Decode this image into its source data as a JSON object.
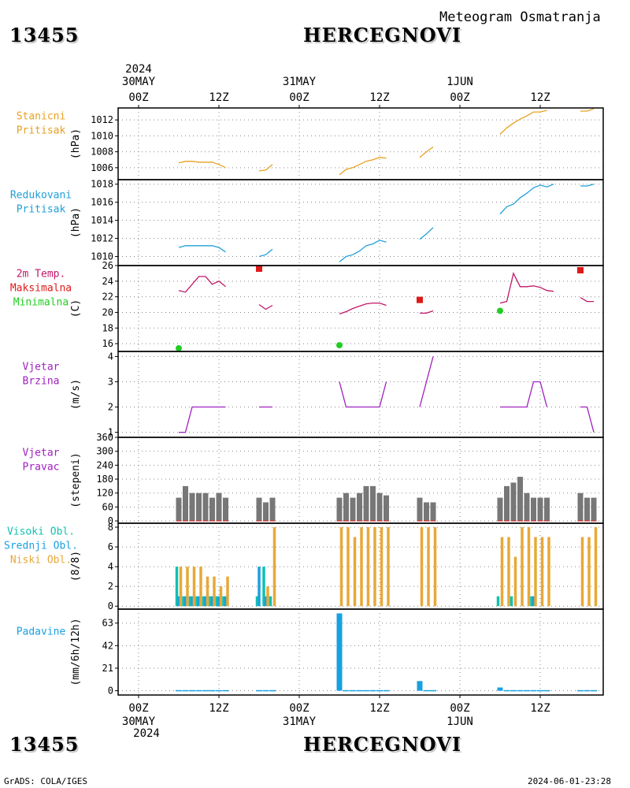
{
  "header": {
    "station_id": "13455",
    "station_name": "HERCEGNOVI",
    "subtitle": "Meteogram Osmatranja"
  },
  "footer": {
    "credit": "GrADS: COLA/IGES",
    "timestamp": "2024-06-01-23:28"
  },
  "time_axis": {
    "year": "2024",
    "day_labels": [
      "30MAY",
      "31MAY",
      "1JUN"
    ],
    "hour_labels": [
      "00Z",
      "12Z",
      "00Z",
      "12Z",
      "00Z",
      "12Z"
    ],
    "tick_hours": [
      0,
      12,
      24,
      36,
      48,
      60
    ]
  },
  "colors": {
    "stanicni": "#e8a020",
    "redukovani": "#1fa0d8",
    "temperature": "#c0186a",
    "maksimalna": "#e01818",
    "minimalna": "#22cc22",
    "wind": "#a020c0",
    "direction_bar": "#777777",
    "visoki": "#10c0b0",
    "srednji": "#1aa0e0",
    "niski": "#e8a838",
    "padavine": "#18a0e0"
  },
  "chart_data": [
    {
      "type": "line",
      "panel": "stanicni",
      "label_lines": [
        "Stanicni",
        "Pritisak"
      ],
      "ylabel": "(hPa)",
      "ylim": [
        1004.5,
        1013.5
      ],
      "yticks": [
        1006,
        1008,
        1010,
        1012
      ],
      "segments": [
        {
          "x": [
            6,
            7,
            8,
            9,
            10,
            11,
            12,
            13
          ],
          "y": [
            1006.6,
            1006.8,
            1006.8,
            1006.7,
            1006.7,
            1006.7,
            1006.4,
            1006.0
          ]
        },
        {
          "x": [
            18,
            19,
            20
          ],
          "y": [
            1005.6,
            1005.7,
            1006.4
          ]
        },
        {
          "x": [
            30,
            31,
            32,
            33,
            34,
            35,
            36,
            37
          ],
          "y": [
            1005.1,
            1005.8,
            1006.0,
            1006.4,
            1006.8,
            1007.0,
            1007.3,
            1007.2
          ]
        },
        {
          "x": [
            42,
            43,
            44
          ],
          "y": [
            1007.3,
            1008.0,
            1008.6
          ]
        },
        {
          "x": [
            54,
            55,
            56,
            57,
            58,
            59,
            60,
            61
          ],
          "y": [
            1010.2,
            1011.0,
            1011.6,
            1012.1,
            1012.5,
            1013.0,
            1013.0,
            1013.2
          ]
        },
        {
          "x": [
            66,
            67,
            68
          ],
          "y": [
            1013.1,
            1013.1,
            1013.4
          ]
        }
      ]
    },
    {
      "type": "line",
      "panel": "redukovani",
      "label_lines": [
        "Redukovani",
        "Pritisak"
      ],
      "ylabel": "(hPa)",
      "ylim": [
        1009,
        1018.5
      ],
      "yticks": [
        1010,
        1012,
        1014,
        1016,
        1018
      ],
      "segments": [
        {
          "x": [
            6,
            7,
            8,
            9,
            10,
            11,
            12,
            13
          ],
          "y": [
            1011.0,
            1011.2,
            1011.2,
            1011.2,
            1011.2,
            1011.2,
            1011.0,
            1010.5
          ]
        },
        {
          "x": [
            18,
            19,
            20
          ],
          "y": [
            1010.0,
            1010.2,
            1010.8
          ]
        },
        {
          "x": [
            30,
            31,
            32,
            33,
            34,
            35,
            36,
            37
          ],
          "y": [
            1009.4,
            1010.0,
            1010.2,
            1010.6,
            1011.2,
            1011.4,
            1011.8,
            1011.6
          ]
        },
        {
          "x": [
            42,
            43,
            44
          ],
          "y": [
            1011.9,
            1012.5,
            1013.2
          ]
        },
        {
          "x": [
            54,
            55,
            56,
            57,
            58,
            59,
            60,
            61,
            62
          ],
          "y": [
            1014.7,
            1015.5,
            1015.8,
            1016.5,
            1017.0,
            1017.6,
            1017.9,
            1017.7,
            1018.0
          ]
        },
        {
          "x": [
            66,
            67,
            68
          ],
          "y": [
            1017.8,
            1017.8,
            1018.0
          ]
        }
      ]
    },
    {
      "type": "line",
      "panel": "temperature",
      "label_lines": [
        "2m Temp.",
        "Maksimalna",
        "Minimalna"
      ],
      "ylabel": "(C)",
      "ylim": [
        15,
        26
      ],
      "yticks": [
        16,
        18,
        20,
        22,
        24,
        26
      ],
      "segments": [
        {
          "x": [
            6,
            7,
            8,
            9,
            10,
            11,
            12,
            13
          ],
          "y": [
            22.8,
            22.6,
            23.6,
            24.6,
            24.6,
            23.6,
            24.0,
            23.3
          ]
        },
        {
          "x": [
            18,
            19,
            20
          ],
          "y": [
            21.0,
            20.4,
            20.9
          ]
        },
        {
          "x": [
            30,
            31,
            32,
            33,
            34,
            35,
            36,
            37
          ],
          "y": [
            19.8,
            20.1,
            20.5,
            20.8,
            21.1,
            21.2,
            21.2,
            20.9
          ]
        },
        {
          "x": [
            42,
            43,
            44
          ],
          "y": [
            19.9,
            19.9,
            20.2
          ]
        },
        {
          "x": [
            54,
            55,
            56,
            57,
            58,
            59,
            60,
            61,
            62
          ],
          "y": [
            21.2,
            21.4,
            25.0,
            23.3,
            23.3,
            23.4,
            23.2,
            22.8,
            22.7
          ]
        },
        {
          "x": [
            66,
            67,
            68
          ],
          "y": [
            21.9,
            21.4,
            21.4
          ]
        }
      ],
      "maksimalna": [
        {
          "x": 18,
          "y": 25.6
        },
        {
          "x": 42,
          "y": 21.6
        },
        {
          "x": 66,
          "y": 25.4
        }
      ],
      "minimalna": [
        {
          "x": 6,
          "y": 15.4
        },
        {
          "x": 30,
          "y": 15.8
        },
        {
          "x": 54,
          "y": 20.2
        }
      ]
    },
    {
      "type": "line",
      "panel": "wind_speed",
      "label_lines": [
        "Vjetar",
        "Brzina"
      ],
      "ylabel": "(m/s)",
      "ylim": [
        0.8,
        4.2
      ],
      "yticks": [
        1,
        2,
        3,
        4
      ],
      "segments": [
        {
          "x": [
            6,
            7,
            8,
            9,
            10,
            11,
            12,
            13
          ],
          "y": [
            1,
            1,
            2,
            2,
            2,
            2,
            2,
            2
          ]
        },
        {
          "x": [
            18,
            19,
            20
          ],
          "y": [
            2,
            2,
            2
          ]
        },
        {
          "x": [
            30,
            31,
            32,
            33,
            34,
            35,
            36,
            37
          ],
          "y": [
            3,
            2,
            2,
            2,
            2,
            2,
            2,
            3
          ]
        },
        {
          "x": [
            42,
            43,
            44
          ],
          "y": [
            2,
            3,
            4
          ]
        },
        {
          "x": [
            54,
            55,
            56,
            57,
            58,
            59,
            60,
            61
          ],
          "y": [
            2,
            2,
            2,
            2,
            2,
            3,
            3,
            2
          ]
        },
        {
          "x": [
            66,
            67,
            68
          ],
          "y": [
            2,
            2,
            1
          ]
        }
      ]
    },
    {
      "type": "bar",
      "panel": "wind_direction",
      "label_lines": [
        "Vjetar",
        "Pravac"
      ],
      "ylabel": "(stepeni)",
      "ylim": [
        -10,
        360
      ],
      "yticks": [
        0,
        60,
        120,
        180,
        240,
        300,
        360
      ],
      "x": [
        6,
        7,
        8,
        9,
        10,
        11,
        12,
        13,
        18,
        19,
        20,
        30,
        31,
        32,
        33,
        34,
        35,
        36,
        37,
        42,
        43,
        44,
        54,
        55,
        56,
        57,
        58,
        59,
        60,
        61,
        66,
        67,
        68
      ],
      "values": [
        100,
        150,
        120,
        120,
        120,
        100,
        120,
        100,
        100,
        80,
        100,
        100,
        120,
        100,
        120,
        150,
        150,
        120,
        110,
        100,
        80,
        80,
        100,
        150,
        165,
        190,
        120,
        100,
        100,
        100,
        120,
        100,
        100
      ]
    },
    {
      "type": "bar",
      "panel": "cloud_cover",
      "label_lines": [
        "Visoki Obl.",
        "Srednji Obl.",
        "Niski Obl."
      ],
      "ylabel": "(8/8)",
      "ylim": [
        -0.3,
        8.4
      ],
      "yticks": [
        0,
        2,
        4,
        6,
        8
      ],
      "x": [
        6,
        7,
        8,
        9,
        10,
        11,
        12,
        13,
        18,
        19,
        20,
        30,
        31,
        32,
        33,
        34,
        35,
        36,
        37,
        42,
        43,
        44,
        54,
        55,
        56,
        57,
        58,
        59,
        60,
        61,
        66,
        67,
        68
      ],
      "series": [
        {
          "name": "Visoki Obl.",
          "values": [
            4,
            1,
            1,
            1,
            1,
            1,
            1,
            1,
            1,
            4,
            1,
            0,
            0,
            0,
            0,
            0,
            0,
            0,
            0,
            0,
            0,
            0,
            1,
            0,
            1,
            0,
            0,
            1,
            0,
            0,
            0,
            0,
            0
          ]
        },
        {
          "name": "Srednji Obl.",
          "values": [
            1,
            1,
            1,
            1,
            1,
            1,
            1,
            1,
            4,
            1,
            0,
            0,
            0,
            0,
            0,
            0,
            0,
            0,
            0,
            0,
            0,
            0,
            0,
            0,
            0,
            0,
            0,
            1,
            0,
            0,
            0,
            0,
            0
          ]
        },
        {
          "name": "Niski Obl.",
          "values": [
            4,
            4,
            4,
            4,
            3,
            3,
            2,
            3,
            0,
            2,
            8,
            8,
            8,
            7,
            8,
            8,
            8,
            8,
            8,
            8,
            8,
            8,
            7,
            7,
            5,
            8,
            8,
            7,
            7,
            7,
            7,
            7,
            8
          ]
        }
      ]
    },
    {
      "type": "bar",
      "panel": "precipitation",
      "label_lines": [
        "Padavine"
      ],
      "ylabel": "(mm/6h/12h)",
      "ylim": [
        -4,
        76
      ],
      "yticks": [
        0,
        21,
        42,
        63
      ],
      "x": [
        30,
        42,
        54
      ],
      "values": [
        72,
        9,
        3
      ],
      "trace_x": [
        6,
        7,
        8,
        9,
        10,
        11,
        12,
        13,
        18,
        19,
        20,
        31,
        32,
        33,
        34,
        35,
        36,
        37,
        43,
        44,
        55,
        56,
        57,
        58,
        59,
        60,
        61,
        66,
        67,
        68
      ]
    }
  ]
}
